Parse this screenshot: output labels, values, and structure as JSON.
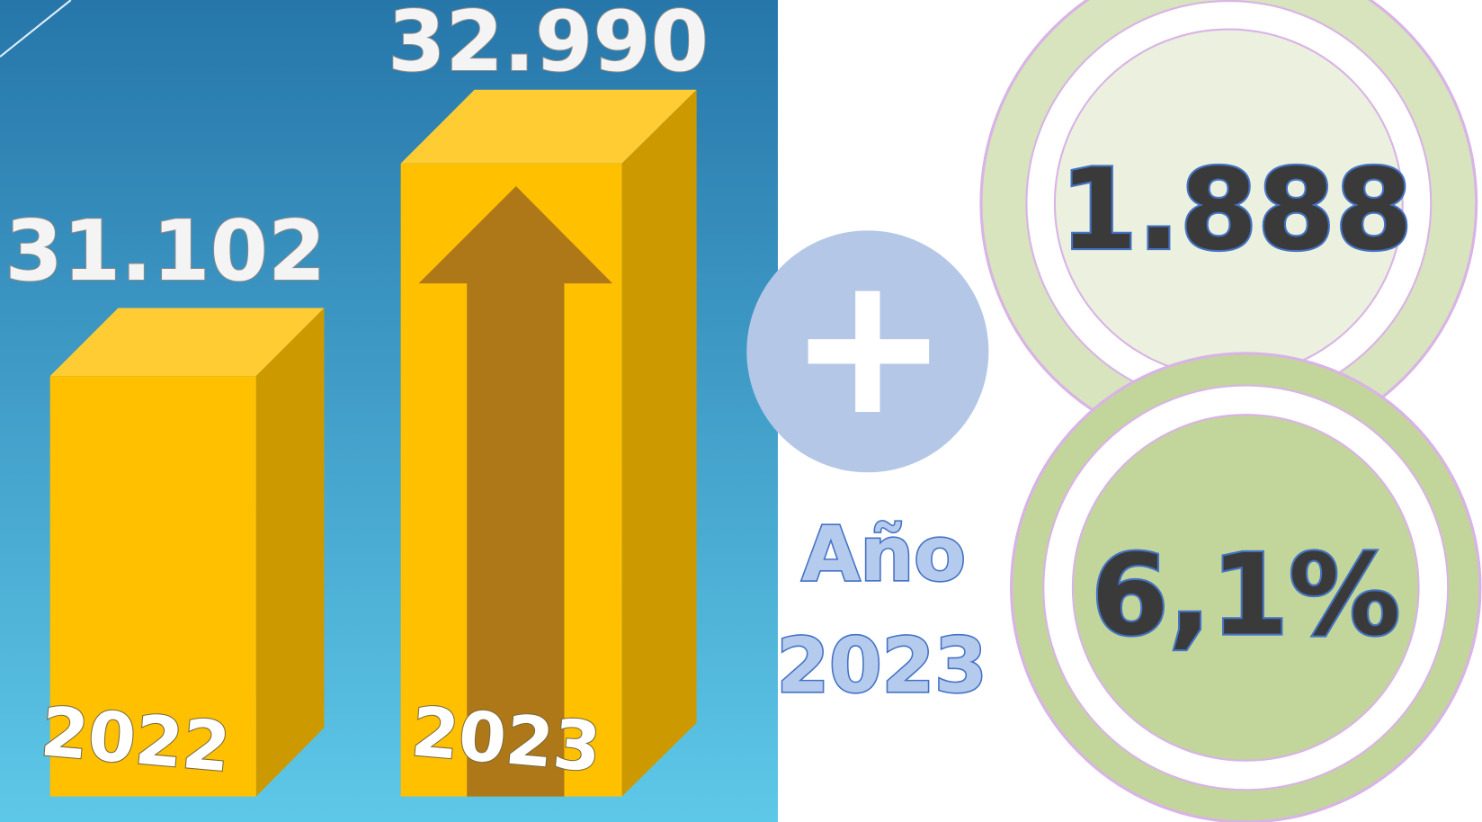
{
  "bars": [
    {
      "value": "31.102",
      "year": "2022"
    },
    {
      "value": "32.990",
      "year": "2023"
    }
  ],
  "increase": {
    "label_line1": "Año",
    "label_line2": "2023",
    "amount": "1.888",
    "percent": "6,1%"
  }
}
